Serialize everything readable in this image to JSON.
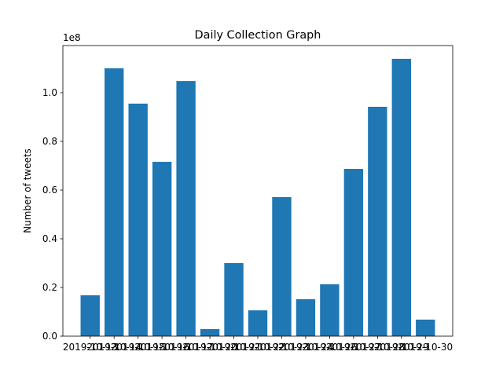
{
  "chart_data": {
    "type": "bar",
    "title": "Daily Collection Graph",
    "ylabel": "Number of tweets",
    "y_offset_label": "1e8",
    "categories": [
      "2019-10-13",
      "2019-10-14",
      "2019-10-15",
      "2019-10-16",
      "2019-10-17",
      "2019-10-20",
      "2019-10-21",
      "2019-10-22",
      "2019-10-23",
      "2019-10-24",
      "2019-10-26",
      "2019-10-27",
      "2019-10-28",
      "2019-10-29",
      "2019-10-30"
    ],
    "values": [
      16800000,
      110000000,
      95500000,
      71600000,
      104800000,
      2900000,
      30000000,
      10600000,
      57100000,
      15200000,
      21300000,
      68700000,
      94200000,
      113900000,
      6800000
    ],
    "color": "#1f77b4",
    "ylim": [
      0,
      119350000
    ],
    "yticks": [
      {
        "value": 0,
        "label": "0.0"
      },
      {
        "value": 20000000,
        "label": "0.2"
      },
      {
        "value": 40000000,
        "label": "0.4"
      },
      {
        "value": 60000000,
        "label": "0.6"
      },
      {
        "value": 80000000,
        "label": "0.8"
      },
      {
        "value": 100000000,
        "label": "1.0"
      }
    ],
    "grid": false
  }
}
